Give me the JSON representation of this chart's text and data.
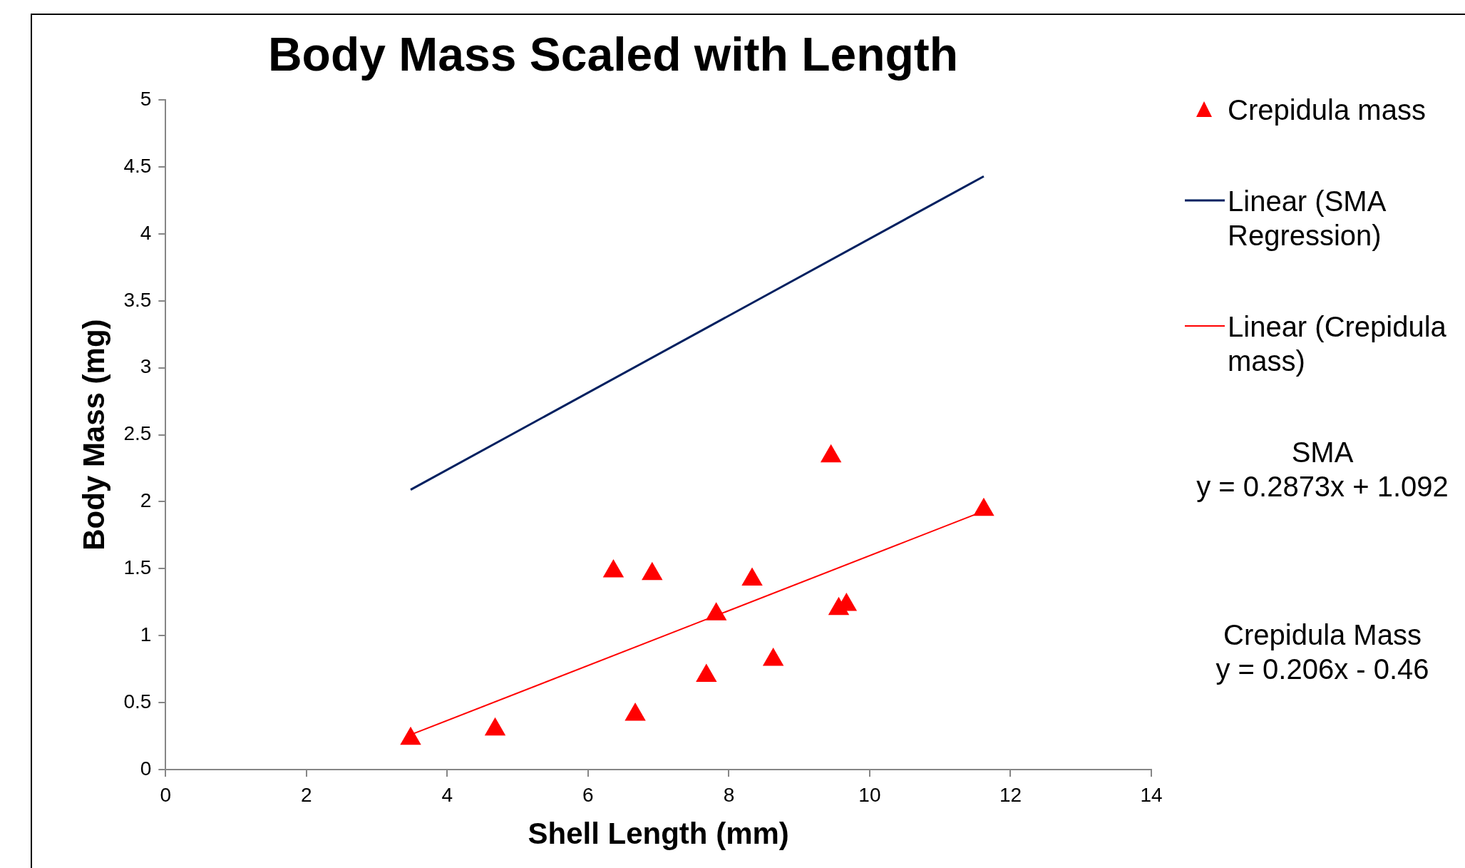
{
  "chart_data": {
    "type": "scatter",
    "title": "Body Mass Scaled with Length",
    "xlabel": "Shell Length (mm)",
    "ylabel": "Body Mass (mg)",
    "xlim": [
      0,
      14
    ],
    "xticks": [
      0,
      2,
      4,
      6,
      8,
      10,
      12,
      14
    ],
    "ylim": [
      0,
      5
    ],
    "yticks": [
      0,
      0.5,
      1,
      1.5,
      2,
      2.5,
      3,
      3.5,
      4,
      4.5,
      5
    ],
    "grid": false,
    "legend": "right",
    "marker": "triangle",
    "series": [
      {
        "name": "Crepidula mass",
        "color": "#ff0000",
        "x": [
          3.48,
          4.68,
          6.36,
          6.67,
          6.91,
          7.68,
          7.82,
          8.33,
          8.63,
          9.45,
          9.56,
          9.67,
          11.62
        ],
        "values": [
          0.23,
          0.3,
          1.48,
          0.41,
          1.46,
          0.7,
          1.16,
          1.42,
          0.82,
          2.34,
          1.2,
          1.23,
          1.94
        ]
      },
      {
        "name": "Linear (SMA Regression)",
        "type": "line",
        "color": "#002060",
        "marker": "none",
        "x": [
          3.48,
          11.62
        ],
        "values": [
          2.09,
          4.43
        ]
      },
      {
        "name": "Linear (Crepidula mass)",
        "type": "line",
        "color": "#ff0000",
        "marker": "none",
        "x": [
          3.48,
          11.62
        ],
        "values": [
          0.26,
          1.93
        ]
      }
    ],
    "annotations": [
      "SMA\ny = 0.2873x + 1.092",
      "Crepidula Mass\ny = 0.206x - 0.46"
    ]
  }
}
